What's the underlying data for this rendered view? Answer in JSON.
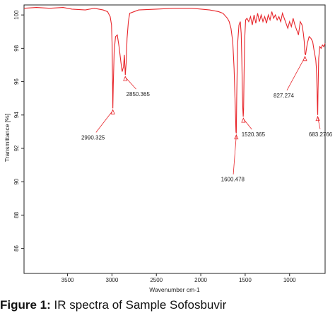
{
  "caption": {
    "label": "Figure 1:",
    "text": "IR spectra of Sample Sofosbuvir"
  },
  "chart_data": {
    "type": "line",
    "title": "",
    "xlabel": "Wavenumber cm-1",
    "ylabel": "Transmittance [%]",
    "xlim": [
      3990,
      600
    ],
    "ylim": [
      84.5,
      100.6
    ],
    "x_ticks": [
      3500,
      3000,
      2500,
      2000,
      1500,
      1000
    ],
    "y_ticks": [
      86,
      88,
      90,
      92,
      94,
      96,
      98,
      100
    ],
    "grid": false,
    "line_color": "#e8262b",
    "series": [
      {
        "x": [
          3990,
          3850,
          3700,
          3550,
          3450,
          3300,
          3200,
          3100,
          3050,
          3020,
          3005,
          2998,
          2994,
          2990,
          2985,
          2975,
          2960,
          2940,
          2920,
          2900,
          2885,
          2870,
          2860,
          2850,
          2840,
          2830,
          2815,
          2800,
          2700,
          2500,
          2300,
          2100,
          1900,
          1800,
          1750,
          1700,
          1680,
          1660,
          1640,
          1625,
          1612,
          1604,
          1600,
          1595,
          1585,
          1570,
          1555,
          1545,
          1538,
          1532,
          1527,
          1522,
          1518,
          1512,
          1505,
          1495,
          1480,
          1460,
          1440,
          1420,
          1400,
          1380,
          1360,
          1340,
          1320,
          1300,
          1280,
          1260,
          1240,
          1220,
          1200,
          1180,
          1160,
          1140,
          1120,
          1100,
          1080,
          1060,
          1040,
          1020,
          1000,
          980,
          960,
          940,
          920,
          900,
          880,
          860,
          845,
          835,
          827,
          820,
          812,
          800,
          780,
          760,
          740,
          725,
          715,
          705,
          698,
          692,
          688,
          685,
          683,
          680,
          672,
          660,
          645,
          630,
          615,
          600
        ],
        "y": [
          100.4,
          100.45,
          100.4,
          100.45,
          100.35,
          100.3,
          100.4,
          100.3,
          100.2,
          99.9,
          99.4,
          98.2,
          96.4,
          94.4,
          95.8,
          97.8,
          98.7,
          98.8,
          98.1,
          97.2,
          96.6,
          96.9,
          97.6,
          96.4,
          97.1,
          98.6,
          99.6,
          100.1,
          100.3,
          100.35,
          100.4,
          100.4,
          100.3,
          100.2,
          100.1,
          99.8,
          99.6,
          99.2,
          98.4,
          96.8,
          94.6,
          93.0,
          92.9,
          95.1,
          98.3,
          99.4,
          99.6,
          98.9,
          97.4,
          95.6,
          94.4,
          93.9,
          94.3,
          96.6,
          98.6,
          99.7,
          99.8,
          99.6,
          99.9,
          99.4,
          100.0,
          99.5,
          100.1,
          99.6,
          100.0,
          99.6,
          99.9,
          99.5,
          100.0,
          99.7,
          100.2,
          99.8,
          100.0,
          99.7,
          99.9,
          99.6,
          100.1,
          99.8,
          99.5,
          99.2,
          99.6,
          99.3,
          99.8,
          99.4,
          99.1,
          98.8,
          99.6,
          99.4,
          98.9,
          98.4,
          97.7,
          97.6,
          97.9,
          98.3,
          98.7,
          98.6,
          98.4,
          97.9,
          97.6,
          97.3,
          96.8,
          95.8,
          94.8,
          94.2,
          94.0,
          95.4,
          97.4,
          98.1,
          98.0,
          98.2,
          98.1,
          98.3
        ]
      }
    ],
    "annotations": [
      {
        "label": "2990.325",
        "x": 2990,
        "y": 94.4
      },
      {
        "label": "2850.365",
        "x": 2850,
        "y": 96.4
      },
      {
        "label": "1600.478",
        "x": 1600,
        "y": 92.9
      },
      {
        "label": "1520.365",
        "x": 1520,
        "y": 93.9
      },
      {
        "label": "827.274",
        "x": 827,
        "y": 97.6
      },
      {
        "label": "683.2766",
        "x": 683,
        "y": 94.0
      }
    ]
  }
}
